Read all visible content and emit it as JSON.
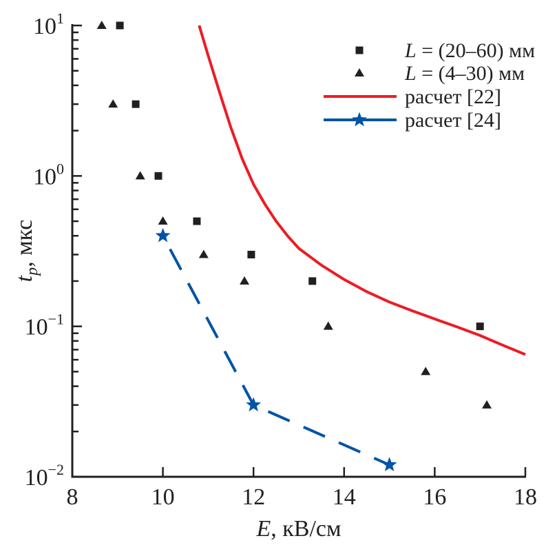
{
  "chart_data": {
    "type": "scatter",
    "title": "",
    "xlabel": {
      "var": "E",
      "unit": ", кВ/см"
    },
    "ylabel": {
      "var": "t",
      "sub": "p",
      "unit": ", мкс"
    },
    "x_scale": "linear",
    "y_scale": "log",
    "xlim": [
      8,
      18
    ],
    "ylim": [
      0.01,
      10
    ],
    "x_ticks": [
      8,
      10,
      12,
      14,
      16,
      18
    ],
    "x_tick_labels": [
      "8",
      "10",
      "12",
      "14",
      "16",
      "18"
    ],
    "y_ticks": [
      {
        "value": 10,
        "base": "10",
        "exp": "1"
      },
      {
        "value": 1,
        "base": "10",
        "exp": "0"
      },
      {
        "value": 0.1,
        "base": "10",
        "exp": "−1"
      },
      {
        "value": 0.01,
        "base": "10",
        "exp": "−2"
      }
    ],
    "grid": false,
    "legend_position": "top-right",
    "series": [
      {
        "name": "L = (20–60) мм",
        "legend_var": "L",
        "legend_rest": " = (20–60) мм",
        "kind": "scatter",
        "marker": "square",
        "color": "#231f20",
        "x": [
          9.05,
          9.4,
          9.9,
          10.75,
          11.95,
          13.3,
          17.0
        ],
        "y": [
          10,
          3,
          1,
          0.5,
          0.3,
          0.2,
          0.1
        ]
      },
      {
        "name": "L = (4–30) мм",
        "legend_var": "L",
        "legend_rest": " = (4–30) мм",
        "kind": "scatter",
        "marker": "triangle",
        "color": "#231f20",
        "x": [
          8.65,
          8.9,
          9.5,
          10.0,
          10.9,
          11.8,
          13.65,
          15.8,
          17.15
        ],
        "y": [
          10,
          3,
          1,
          0.5,
          0.3,
          0.2,
          0.1,
          0.05,
          0.03
        ]
      },
      {
        "name": "расчет [22]",
        "legend_var": "",
        "legend_rest": "расчет [22]",
        "kind": "line",
        "marker": "none",
        "line_style": "solid",
        "color": "#ed1c24",
        "x": [
          10.8,
          11.0,
          11.25,
          11.5,
          11.75,
          12.0,
          12.25,
          12.5,
          12.75,
          13.0,
          13.5,
          14.0,
          14.5,
          15.0,
          15.5,
          16.0,
          16.5,
          17.0,
          17.5,
          18.0
        ],
        "y": [
          10,
          6.3,
          3.6,
          2.1,
          1.3,
          0.88,
          0.65,
          0.5,
          0.4,
          0.33,
          0.255,
          0.205,
          0.17,
          0.145,
          0.127,
          0.112,
          0.099,
          0.087,
          0.075,
          0.065
        ]
      },
      {
        "name": "расчет [24]",
        "legend_var": "",
        "legend_rest": "расчет [24]",
        "kind": "line",
        "marker": "star",
        "line_style": "dashed",
        "color": "#0054a6",
        "x": [
          10,
          12,
          15
        ],
        "y": [
          0.4,
          0.03,
          0.012
        ]
      }
    ]
  }
}
